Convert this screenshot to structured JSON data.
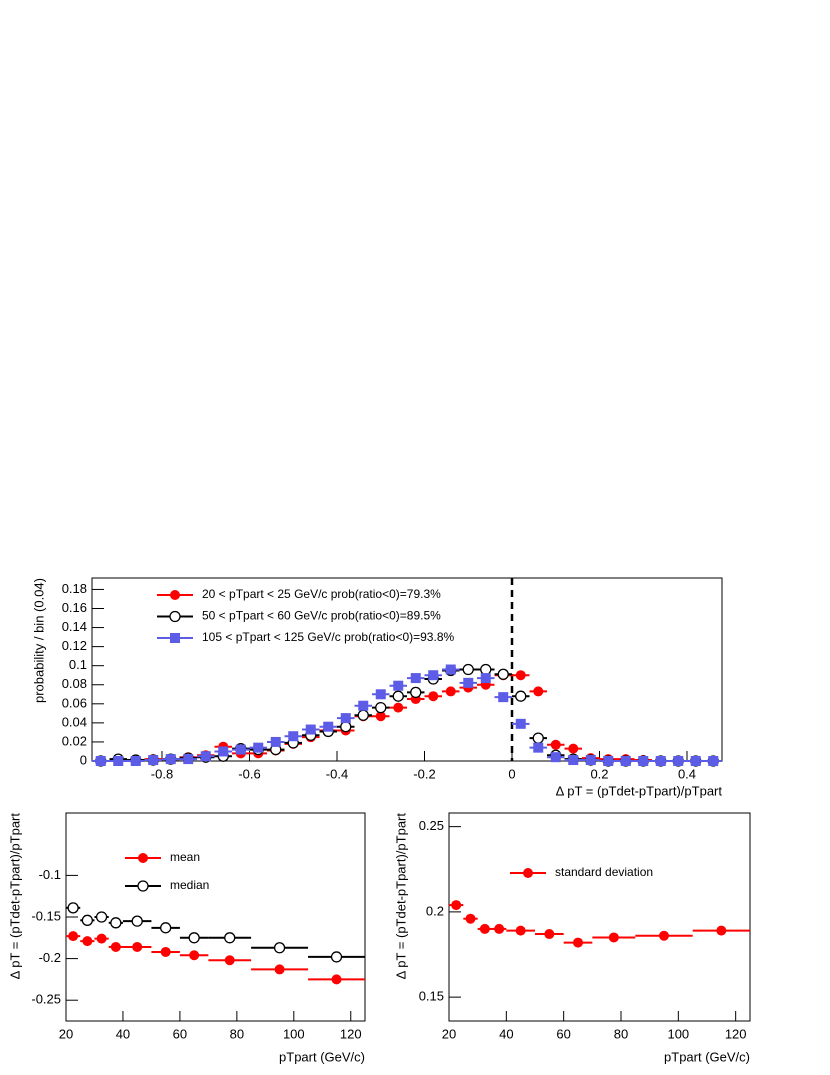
{
  "chart_data": [
    {
      "type": "scatter",
      "xlabel": "Δ pT = (pTdet-pTpart)/pTpart",
      "ylabel": "probability / bin (0.04)",
      "bins": [
        -0.96,
        -0.92,
        -0.88,
        -0.84,
        -0.8,
        -0.76,
        -0.72,
        -0.68,
        -0.64,
        -0.6,
        -0.56,
        -0.52,
        -0.48,
        -0.44,
        -0.4,
        -0.36,
        -0.32,
        -0.28,
        -0.24,
        -0.2,
        -0.16,
        -0.12,
        -0.08,
        -0.04,
        0,
        0.04,
        0.08,
        0.12,
        0.16,
        0.2,
        0.24,
        0.28,
        0.32,
        0.36,
        0.4,
        0.44,
        0.48
      ],
      "xlim": [
        -0.96,
        0.48
      ],
      "xticks": [
        -0.8,
        -0.6,
        -0.4,
        -0.2,
        0,
        0.2,
        0.4
      ],
      "ylim": [
        0,
        0.192
      ],
      "yticks": [
        0,
        0.02,
        0.04,
        0.06,
        0.08,
        0.1,
        0.12,
        0.14,
        0.16,
        0.18
      ],
      "vline": 0,
      "series": [
        {
          "name": "20 < pTpart < 25 GeV/c prob(ratio<0)=79.3%",
          "color": "#ff0000",
          "marker": "circle",
          "values": [
            0,
            0,
            0.001,
            0.002,
            0.002,
            0.004,
            0.006,
            0.015,
            0.008,
            0.008,
            0.011,
            0.018,
            0.025,
            0.032,
            0.032,
            0.047,
            0.047,
            0.056,
            0.065,
            0.068,
            0.073,
            0.077,
            0.08,
            0.09,
            0.09,
            0.073,
            0.017,
            0.013,
            0.003,
            0.002,
            0.002,
            0.001,
            0,
            0,
            0,
            0
          ]
        },
        {
          "name": "50 < pTpart < 60 GeV/c prob(ratio<0)=89.5%",
          "color": "#000000",
          "marker": "open-circle",
          "values": [
            0,
            0.002,
            0.001,
            0.001,
            0.002,
            0.003,
            0.004,
            0.005,
            0.013,
            0.012,
            0.012,
            0.019,
            0.027,
            0.031,
            0.036,
            0.048,
            0.056,
            0.068,
            0.072,
            0.086,
            0.095,
            0.096,
            0.096,
            0.091,
            0.068,
            0.024,
            0.006,
            0.002,
            0.001,
            0,
            0,
            0,
            0,
            0,
            0,
            0
          ]
        },
        {
          "name": "105 < pTpart < 125 GeV/c prob(ratio<0)=93.8%",
          "color": "#5c5ce6",
          "marker": "square",
          "values": [
            0,
            0,
            0,
            0.001,
            0.002,
            0.002,
            0.005,
            0.01,
            0.012,
            0.014,
            0.02,
            0.026,
            0.033,
            0.036,
            0.045,
            0.058,
            0.07,
            0.079,
            0.087,
            0.09,
            0.096,
            0.082,
            0.087,
            0.067,
            0.039,
            0.014,
            0.004,
            0.001,
            0.001,
            0,
            0,
            0,
            0,
            0,
            0,
            0
          ]
        }
      ]
    },
    {
      "type": "scatter",
      "xlabel": "pTpart (GeV/c)",
      "ylabel": "Δ pT = (pTdet-pTpart)/pTpart",
      "bins": [
        20,
        25,
        30,
        35,
        40,
        50,
        60,
        70,
        85,
        105,
        125
      ],
      "xlim": [
        20,
        125
      ],
      "xticks": [
        20,
        40,
        60,
        80,
        100,
        120
      ],
      "ylim": [
        -0.275,
        -0.025
      ],
      "yticks": [
        -0.25,
        -0.2,
        -0.15,
        -0.1
      ],
      "series": [
        {
          "name": "mean",
          "color": "#ff0000",
          "marker": "circle",
          "values": [
            -0.173,
            -0.179,
            -0.176,
            -0.186,
            -0.186,
            -0.192,
            -0.196,
            -0.202,
            -0.213,
            -0.225
          ]
        },
        {
          "name": "median",
          "color": "#000000",
          "marker": "open-circle",
          "values": [
            -0.139,
            -0.154,
            -0.15,
            -0.157,
            -0.155,
            -0.163,
            -0.175,
            -0.175,
            -0.187,
            -0.198
          ]
        }
      ]
    },
    {
      "type": "scatter",
      "xlabel": "pTpart (GeV/c)",
      "ylabel": "Δ pT = (pTdet-pTpart)/pTpart",
      "bins": [
        20,
        25,
        30,
        35,
        40,
        50,
        60,
        70,
        85,
        105,
        125
      ],
      "xlim": [
        20,
        125
      ],
      "xticks": [
        20,
        40,
        60,
        80,
        100,
        120
      ],
      "ylim": [
        0.136,
        0.258
      ],
      "yticks": [
        0.15,
        0.2,
        0.25
      ],
      "series": [
        {
          "name": "standard deviation",
          "color": "#ff0000",
          "marker": "circle",
          "values": [
            0.204,
            0.196,
            0.19,
            0.19,
            0.189,
            0.187,
            0.182,
            0.185,
            0.186,
            0.189
          ]
        }
      ]
    }
  ]
}
